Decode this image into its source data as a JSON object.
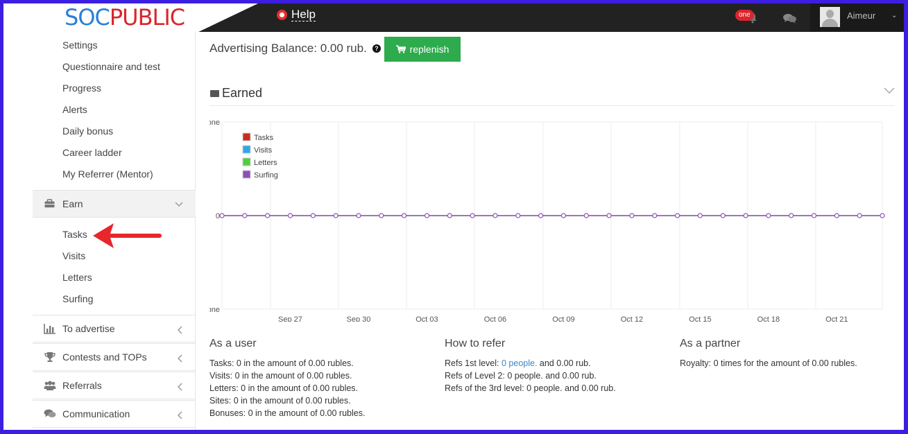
{
  "brand": {
    "logo_part1": "SOC",
    "logo_part2": "PUBLIC"
  },
  "header": {
    "help_label": "Help",
    "notification_badge": "one",
    "username": "Aimeur"
  },
  "sidebar": {
    "profile_items": [
      {
        "label": "Settings"
      },
      {
        "label": "Questionnaire and test"
      },
      {
        "label": "Progress"
      },
      {
        "label": "Alerts"
      },
      {
        "label": "Daily bonus"
      },
      {
        "label": "Career ladder"
      },
      {
        "label": "My Referrer (Mentor)"
      }
    ],
    "earn_section": {
      "label": "Earn",
      "icon": "briefcase-icon",
      "expanded": true
    },
    "earn_items": [
      {
        "label": "Tasks"
      },
      {
        "label": "Visits"
      },
      {
        "label": "Letters"
      },
      {
        "label": "Surfing"
      }
    ],
    "sections": [
      {
        "label": "To advertise",
        "icon": "bar-chart-icon"
      },
      {
        "label": "Contests and TOPs",
        "icon": "trophy-icon"
      },
      {
        "label": "Referrals",
        "icon": "users-icon"
      },
      {
        "label": "Communication",
        "icon": "comments-icon"
      }
    ]
  },
  "main": {
    "balance_text": "Advertising Balance: 0.00 rub.",
    "replenish_label": "replenish",
    "earned_title": "Earned"
  },
  "chart_data": {
    "type": "line",
    "y_tick_labels": [
      "one",
      "0",
      "-one"
    ],
    "ylim": [
      -1,
      1
    ],
    "x_tick_labels": [
      "Sep 27",
      "Sep 30",
      "Oct 03",
      "Oct 06",
      "Oct 09",
      "Oct 12",
      "Oct 15",
      "Oct 18",
      "Oct 21"
    ],
    "x_range": [
      "Sep 24",
      "Oct 23"
    ],
    "series": [
      {
        "name": "Tasks",
        "color": "#cc2a1f",
        "values": [
          0,
          0,
          0,
          0,
          0,
          0,
          0,
          0,
          0,
          0,
          0,
          0,
          0,
          0,
          0,
          0,
          0,
          0,
          0,
          0,
          0,
          0,
          0,
          0,
          0,
          0,
          0,
          0,
          0,
          0
        ]
      },
      {
        "name": "Visits",
        "color": "#2ea7e6",
        "values": [
          0,
          0,
          0,
          0,
          0,
          0,
          0,
          0,
          0,
          0,
          0,
          0,
          0,
          0,
          0,
          0,
          0,
          0,
          0,
          0,
          0,
          0,
          0,
          0,
          0,
          0,
          0,
          0,
          0,
          0
        ]
      },
      {
        "name": "Letters",
        "color": "#4fcf3a",
        "values": [
          0,
          0,
          0,
          0,
          0,
          0,
          0,
          0,
          0,
          0,
          0,
          0,
          0,
          0,
          0,
          0,
          0,
          0,
          0,
          0,
          0,
          0,
          0,
          0,
          0,
          0,
          0,
          0,
          0,
          0
        ]
      },
      {
        "name": "Surfing",
        "color": "#8e4fb8",
        "values": [
          0,
          0,
          0,
          0,
          0,
          0,
          0,
          0,
          0,
          0,
          0,
          0,
          0,
          0,
          0,
          0,
          0,
          0,
          0,
          0,
          0,
          0,
          0,
          0,
          0,
          0,
          0,
          0,
          0,
          0
        ]
      }
    ],
    "legend": "top-left",
    "grid": true
  },
  "stats": {
    "user": {
      "title": "As a user",
      "lines": [
        "Tasks: 0 in the amount of 0.00 rubles.",
        "Visits: 0 in the amount of 0.00 rubles.",
        "Letters: 0 in the amount of 0.00 rubles.",
        "Sites: 0 in the amount of 0.00 rubles.",
        "Bonuses: 0 in the amount of 0.00 rubles."
      ]
    },
    "refer": {
      "title": "How to refer",
      "line1_prefix": "Refs 1st level: ",
      "line1_link": "0 people.",
      "line1_suffix": " and 0.00 rub.",
      "line2": "Refs of Level 2: 0 people. and 0.00 rub.",
      "line3": "Refs of the 3rd level: 0 people. and 0.00 rub."
    },
    "partner": {
      "title": "As a partner",
      "line1": "Royalty: 0 times for the amount of 0.00 rubles."
    }
  }
}
